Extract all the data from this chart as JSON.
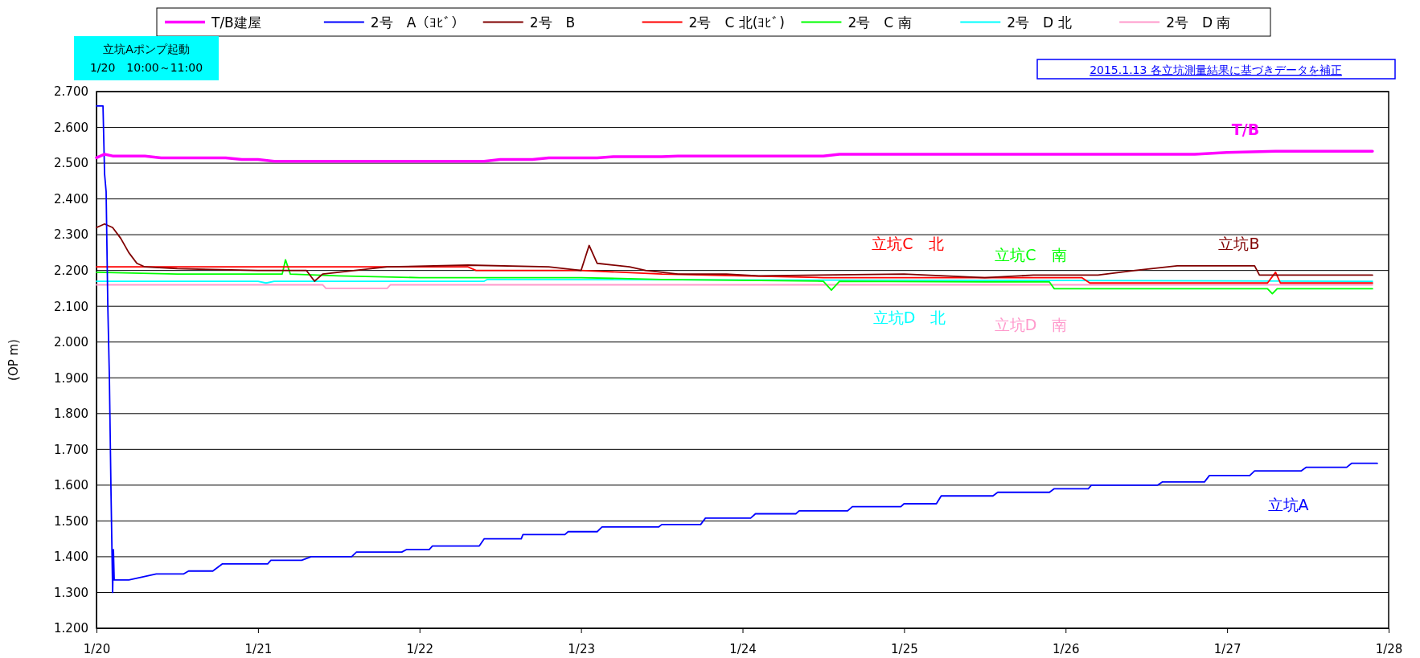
{
  "chart_data": {
    "type": "line",
    "ylabel": "(OP m)",
    "legend": "top",
    "grid": "y",
    "line_style": "solid",
    "marker": "none",
    "xlim": [
      "--01-20",
      "--01-28"
    ],
    "xticks": [
      {
        "value": "--01-20",
        "label": "1/20"
      },
      {
        "value": "--01-21",
        "label": "1/21"
      },
      {
        "value": "--01-22",
        "label": "1/22"
      },
      {
        "value": "--01-23",
        "label": "1/23"
      },
      {
        "value": "--01-24",
        "label": "1/24"
      },
      {
        "value": "--01-25",
        "label": "1/25"
      },
      {
        "value": "--01-26",
        "label": "1/26"
      },
      {
        "value": "--01-27",
        "label": "1/27"
      },
      {
        "value": "--01-28",
        "label": "1/28"
      }
    ],
    "ylim": [
      1.2,
      2.7
    ],
    "yticks": [
      {
        "value": 1.2,
        "label": "1.200"
      },
      {
        "value": 1.3,
        "label": "1.300"
      },
      {
        "value": 1.4,
        "label": "1.400"
      },
      {
        "value": 1.5,
        "label": "1.500"
      },
      {
        "value": 1.6,
        "label": "1.600"
      },
      {
        "value": 1.7,
        "label": "1.700"
      },
      {
        "value": 1.8,
        "label": "1.800"
      },
      {
        "value": 1.9,
        "label": "1.900"
      },
      {
        "value": 2.0,
        "label": "2.000"
      },
      {
        "value": 2.1,
        "label": "2.100"
      },
      {
        "value": 2.2,
        "label": "2.200"
      },
      {
        "value": 2.3,
        "label": "2.300"
      },
      {
        "value": 2.4,
        "label": "2.400"
      },
      {
        "value": 2.5,
        "label": "2.500"
      },
      {
        "value": 2.6,
        "label": "2.600"
      },
      {
        "value": 2.7,
        "label": "2.700"
      }
    ],
    "series": [
      {
        "name": "T/B建屋",
        "color": "#ff00ff",
        "x": [
          "--01-20T00:00",
          "--01-20T01:12",
          "--01-20T02:24",
          "--01-20T07:12",
          "--01-20T09:36",
          "--01-20T19:12",
          "--01-20T21:36",
          "--01-21T00:00",
          "--01-21T02:24",
          "--01-22T09:36",
          "--01-22T12:00",
          "--01-22T16:48",
          "--01-22T19:12",
          "--01-23T02:24",
          "--01-23T04:48",
          "--01-23T12:00",
          "--01-23T14:24",
          "--01-24T12:00",
          "--01-24T14:24",
          "--01-26T19:12",
          "--01-27T00:00",
          "--01-27T07:12",
          "--01-27T21:36"
        ],
        "values": [
          2.515,
          2.525,
          2.52,
          2.52,
          2.515,
          2.515,
          2.51,
          2.51,
          2.505,
          2.505,
          2.51,
          2.51,
          2.515,
          2.515,
          2.518,
          2.518,
          2.52,
          2.52,
          2.525,
          2.525,
          2.53,
          2.533,
          2.533
        ]
      },
      {
        "name": "2号　A（ﾖﾋﾞ）",
        "color": "#0000ff",
        "x": [
          "--01-20T00:00",
          "--01-20T00:58",
          "--01-20T01:12",
          "--01-20T01:26",
          "--01-20T01:41",
          "--01-20T01:55",
          "--01-20T02:10",
          "--01-20T02:24",
          "--01-20T02:31",
          "--01-20T02:38",
          "--01-20T04:48",
          "--01-20T08:53",
          "--01-20T12:58",
          "--01-20T13:41",
          "--01-20T17:17",
          "--01-20T18:43",
          "--01-21T01:26",
          "--01-21T01:55",
          "--01-21T06:29",
          "--01-21T07:55",
          "--01-21T13:55",
          "--01-21T14:38",
          "--01-21T21:22",
          "--01-21T22:05",
          "--01-22T01:26",
          "--01-22T01:55",
          "--01-22T08:53",
          "--01-22T09:36",
          "--01-22T15:07",
          "--01-22T15:22",
          "--01-22T21:36",
          "--01-22T22:05",
          "--01-23T02:24",
          "--01-23T03:07",
          "--01-23T11:31",
          "--01-23T12:00",
          "--01-23T17:46",
          "--01-23T18:29",
          "--01-24T01:12",
          "--01-24T01:55",
          "--01-24T07:55",
          "--01-24T08:24",
          "--01-24T15:36",
          "--01-24T16:19",
          "--01-24T23:31",
          "--01-25T00:00",
          "--01-25T04:48",
          "--01-25T05:31",
          "--01-25T13:12",
          "--01-25T13:55",
          "--01-25T21:36",
          "--01-25T22:19",
          "--01-26T03:22",
          "--01-26T03:50",
          "--01-26T13:41",
          "--01-26T14:24",
          "--01-26T20:38",
          "--01-26T21:22",
          "--01-27T03:22",
          "--01-27T04:05",
          "--01-27T11:02",
          "--01-27T11:46",
          "--01-27T17:46",
          "--01-27T18:29",
          "--01-27T22:19"
        ],
        "values": [
          2.66,
          2.66,
          2.47,
          2.42,
          2.1,
          1.9,
          1.57,
          1.3,
          1.42,
          1.335,
          1.335,
          1.352,
          1.352,
          1.36,
          1.36,
          1.38,
          1.38,
          1.39,
          1.39,
          1.4,
          1.4,
          1.413,
          1.413,
          1.42,
          1.42,
          1.43,
          1.43,
          1.45,
          1.45,
          1.462,
          1.462,
          1.47,
          1.47,
          1.483,
          1.483,
          1.49,
          1.49,
          1.508,
          1.508,
          1.52,
          1.52,
          1.528,
          1.528,
          1.54,
          1.54,
          1.548,
          1.548,
          1.57,
          1.57,
          1.58,
          1.58,
          1.59,
          1.59,
          1.6,
          1.6,
          1.609,
          1.609,
          1.627,
          1.627,
          1.64,
          1.64,
          1.65,
          1.65,
          1.661,
          1.661
        ]
      },
      {
        "name": "2号　B",
        "color": "#800000",
        "x": [
          "--01-20T00:00",
          "--01-20T01:12",
          "--01-20T02:24",
          "--01-20T03:36",
          "--01-20T04:48",
          "--01-20T06:00",
          "--01-20T07:12",
          "--01-20T12:00",
          "--01-21T00:00",
          "--01-21T07:12",
          "--01-21T08:24",
          "--01-21T09:36",
          "--01-21T19:12",
          "--01-22T07:12",
          "--01-22T19:12",
          "--01-23T00:00",
          "--01-23T01:12",
          "--01-23T02:24",
          "--01-23T07:12",
          "--01-23T09:36",
          "--01-23T14:24",
          "--01-23T21:36",
          "--01-24T02:24",
          "--01-25T00:00",
          "--01-25T12:00",
          "--01-25T19:12",
          "--01-26T04:48",
          "--01-26T10:19",
          "--01-26T16:34",
          "--01-27T04:05",
          "--01-27T04:48",
          "--01-27T21:36"
        ],
        "values": [
          2.32,
          2.33,
          2.32,
          2.29,
          2.25,
          2.22,
          2.21,
          2.205,
          2.2,
          2.2,
          2.17,
          2.19,
          2.21,
          2.215,
          2.21,
          2.2,
          2.27,
          2.22,
          2.21,
          2.2,
          2.19,
          2.19,
          2.185,
          2.19,
          2.18,
          2.187,
          2.187,
          2.2,
          2.213,
          2.213,
          2.187,
          2.187
        ]
      },
      {
        "name": "2号　C 北(ﾖﾋﾞ)",
        "color": "#ff0000",
        "x": [
          "--01-20T00:00",
          "--01-22T07:12",
          "--01-22T08:24",
          "--01-23T00:00",
          "--01-23T12:00",
          "--01-24T00:00",
          "--01-24T12:00",
          "--01-26T02:24",
          "--01-26T03:36",
          "--01-27T06:00",
          "--01-27T07:12",
          "--01-27T07:55",
          "--01-27T21:36"
        ],
        "values": [
          2.21,
          2.21,
          2.2,
          2.2,
          2.19,
          2.185,
          2.18,
          2.18,
          2.165,
          2.165,
          2.195,
          2.165,
          2.165
        ]
      },
      {
        "name": "2号　C 南",
        "color": "#00ff00",
        "x": [
          "--01-20T00:00",
          "--01-20T12:00",
          "--01-21T03:36",
          "--01-21T04:05",
          "--01-21T04:48",
          "--01-21T12:00",
          "--01-22T00:00",
          "--01-23T00:00",
          "--01-23T12:00",
          "--01-24T12:00",
          "--01-24T13:12",
          "--01-24T14:24",
          "--01-25T12:00",
          "--01-25T21:36",
          "--01-25T22:19",
          "--01-27T06:00",
          "--01-27T06:43",
          "--01-27T07:26",
          "--01-27T21:36"
        ],
        "values": [
          2.195,
          2.19,
          2.19,
          2.23,
          2.19,
          2.185,
          2.18,
          2.18,
          2.175,
          2.17,
          2.145,
          2.17,
          2.168,
          2.168,
          2.149,
          2.149,
          2.135,
          2.149,
          2.149
        ]
      },
      {
        "name": "2号　D 北",
        "color": "#00ffff",
        "x": [
          "--01-20T00:00",
          "--01-21T00:00",
          "--01-21T01:12",
          "--01-21T02:24",
          "--01-22T09:36",
          "--01-22T10:05",
          "--01-26T00:00",
          "--01-27T21:36"
        ],
        "values": [
          2.17,
          2.17,
          2.165,
          2.17,
          2.17,
          2.175,
          2.172,
          2.17
        ]
      },
      {
        "name": "2号　D 南",
        "color": "#ff99cc",
        "x": [
          "--01-20T00:00",
          "--01-21T09:36",
          "--01-21T10:05",
          "--01-21T19:12",
          "--01-21T19:41",
          "--01-27T21:36"
        ],
        "values": [
          2.16,
          2.16,
          2.15,
          2.15,
          2.16,
          2.16
        ]
      }
    ],
    "annotations": [
      "立坑Aポンプ起動\n1/20　10:00～11:00",
      "2015.1.13 各立坑測量結果に基づきデータを補正",
      "T/B",
      "立坑A",
      "立坑B",
      "立坑C　北",
      "立坑C　南",
      "立坑D　北",
      "立坑D　南"
    ]
  }
}
